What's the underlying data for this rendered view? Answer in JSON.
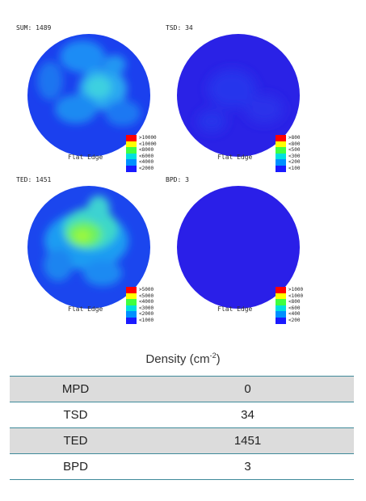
{
  "maps": [
    {
      "id": "sum",
      "label": "SUM: 1489",
      "caption": "Flat Edge",
      "base_color": "#1b40ee",
      "legend": [
        {
          "text": ">10000",
          "color": "#ff0000"
        },
        {
          "text": "<10000",
          "color": "#ffff00"
        },
        {
          "text": "<8000",
          "color": "#40ff40"
        },
        {
          "text": "<6000",
          "color": "#00e0e0"
        },
        {
          "text": "<4000",
          "color": "#0090ff"
        },
        {
          "text": "<2000",
          "color": "#1a1aff"
        }
      ]
    },
    {
      "id": "tsd",
      "label": "TSD: 34",
      "caption": "Flat Edge",
      "base_color": "#2a22e6",
      "legend": [
        {
          "text": ">800",
          "color": "#ff0000"
        },
        {
          "text": "<800",
          "color": "#ffff00"
        },
        {
          "text": "<500",
          "color": "#40ff40"
        },
        {
          "text": "<300",
          "color": "#00e0e0"
        },
        {
          "text": "<200",
          "color": "#0090ff"
        },
        {
          "text": "<100",
          "color": "#1a1aff"
        }
      ]
    },
    {
      "id": "ted",
      "label": "TED: 1451",
      "caption": "Flat Edge",
      "base_color": "#1b46ee",
      "legend": [
        {
          "text": ">5000",
          "color": "#ff0000"
        },
        {
          "text": "<5000",
          "color": "#ffff00"
        },
        {
          "text": "<4000",
          "color": "#40ff40"
        },
        {
          "text": "<3000",
          "color": "#00e0e0"
        },
        {
          "text": "<2000",
          "color": "#0090ff"
        },
        {
          "text": "<1000",
          "color": "#1a1aff"
        }
      ]
    },
    {
      "id": "bpd",
      "label": "BPD: 3",
      "caption": "Flat Edge",
      "base_color": "#2a1fe8",
      "legend": [
        {
          "text": ">1000",
          "color": "#ff0000"
        },
        {
          "text": "<1000",
          "color": "#ffff00"
        },
        {
          "text": "<800",
          "color": "#40ff40"
        },
        {
          "text": "<600",
          "color": "#00e0e0"
        },
        {
          "text": "<400",
          "color": "#0090ff"
        },
        {
          "text": "<200",
          "color": "#1a1aff"
        }
      ]
    }
  ],
  "table": {
    "title_text": "Density (cm",
    "title_sup": "-2",
    "title_close": ")",
    "rows": [
      {
        "name": "MPD",
        "value": "0"
      },
      {
        "name": "TSD",
        "value": "34"
      },
      {
        "name": "TED",
        "value": "1451"
      },
      {
        "name": "BPD",
        "value": "3"
      }
    ]
  }
}
